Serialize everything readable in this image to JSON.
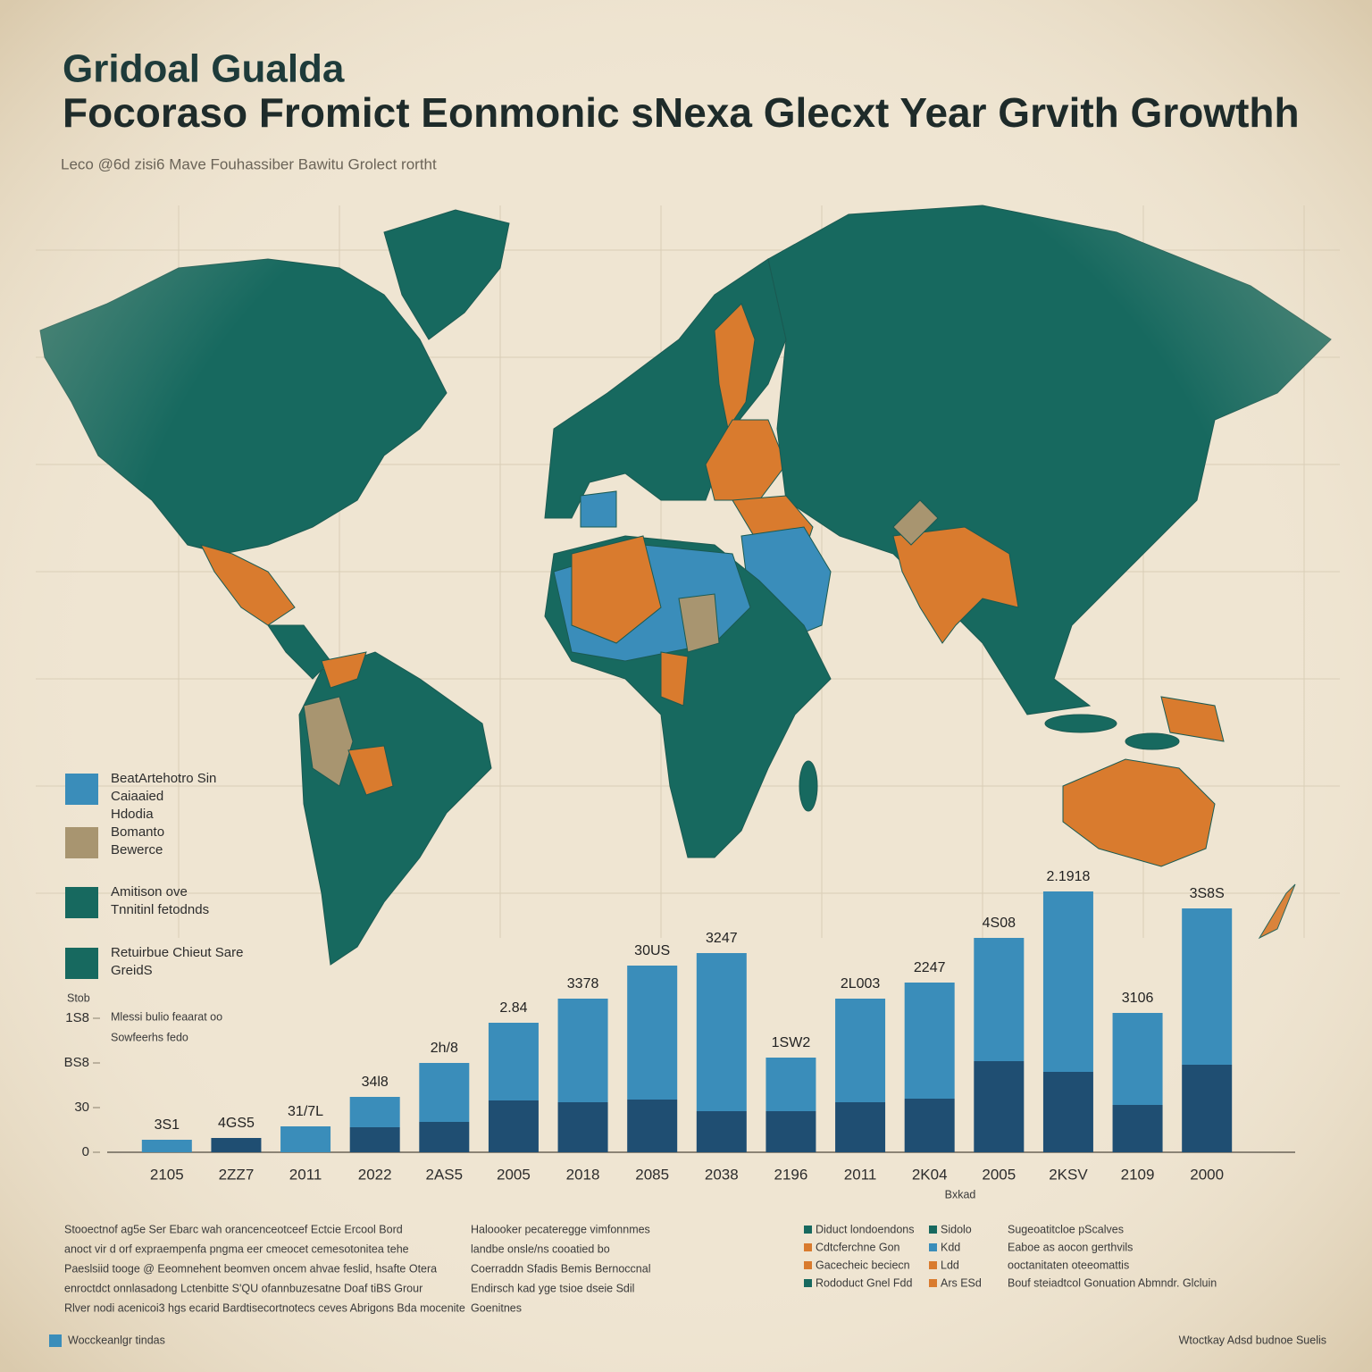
{
  "header": {
    "title_line1": "Gridoal Gualda",
    "title_line2": "Focoraso Fromict Eonmonic sNexa Glecxt Year Grvith Growthh",
    "subtitle": "Leco @6d zisi6 Mave Fouhassiber Bawitu Grolect rortht"
  },
  "legend": {
    "items": [
      {
        "color": "#3a8dba",
        "lines": [
          "BeatArtehotro Sin",
          "Caiaaied",
          "Hdodia"
        ]
      },
      {
        "color": "#a89570",
        "lines": [
          "Bomanto",
          "Bewerce"
        ]
      },
      {
        "color": "#17695f",
        "lines": [
          "Amitison ove",
          "Tnnitinl fetodnds"
        ]
      },
      {
        "color": "#17695f",
        "lines": [
          "Retuirbue Chieut Sare",
          "GreidS"
        ]
      }
    ],
    "axis_note": [
      "Stob",
      "Mlessi bulio feaarat oo",
      "Sowfeerhs fedo"
    ]
  },
  "chart_data": {
    "type": "stacked-bar",
    "x_label": "Bxkad",
    "categories": [
      "2105",
      "2ZZ7",
      "2011",
      "2022",
      "2AS5",
      "2005",
      "2018",
      "2085",
      "2038",
      "2196",
      "2011",
      "2K04",
      "2005",
      "2KSV",
      "2109",
      "2000"
    ],
    "series": [
      {
        "color": "#1f4e72",
        "values": [
          null,
          9.6,
          null,
          16.8,
          20.4,
          34.8,
          33.6,
          35.4,
          27.6,
          27.6,
          33.6,
          36,
          61.2,
          54,
          31.8,
          58.8
        ]
      },
      {
        "color": "#3a8dba",
        "values": [
          8.4,
          null,
          17.4,
          20.4,
          39.6,
          52.2,
          69.6,
          90,
          106.2,
          36,
          69.6,
          78,
          82.8,
          121.2,
          61.8,
          105
        ]
      }
    ],
    "annotations": [
      "3S1",
      "4GS5",
      "31/7L",
      "34l8",
      "2h/8",
      "2.84",
      "3378",
      "30US",
      "3247",
      "1SW2",
      "2L003",
      "2247",
      "4S08",
      "2.1918",
      "3106",
      "3S8S"
    ],
    "ylim": [
      0,
      180
    ],
    "yticks": [
      0,
      30,
      {
        "value": 60,
        "label": "BS8"
      },
      {
        "value": 90,
        "label": "1S8"
      }
    ]
  },
  "notes": {
    "col1": [
      "Stooectnof ag5e Ser Ebarc wah orancenceotceef Ectcie Ercool Bord",
      "anoct vir d orf expraempenfa pngma eer cmeocet cemesotonitea tehe",
      "Paeslsiid tooge @ Eeomnehent beomven oncem ahvae feslid, hsafte Otera",
      "enroctdct onnlasadong Lctenbitte S'QU ofannbuzesatne Doaf tiBS Grour",
      "Rlver nodi acenicoi3 hgs ecarid Bardtisecortnotecs ceves Abrigons Bda mocenite"
    ],
    "col2": [
      "Haloooker pecateregge vimfonnmes",
      "landbe onsle/ns cooatied bo",
      "Coerraddn Sfadis Bemis Bernoccnal",
      "Endirsch kad yge tsioe dseie Sdil",
      "Goenitnes"
    ],
    "key1": [
      {
        "color": "#17695f",
        "text": "Diduct londoendons"
      },
      {
        "color": "#d97b2e",
        "text": "Cdtcferchne Gon"
      },
      {
        "color": "#d97b2e",
        "text": "Gacecheic beciecn"
      },
      {
        "color": "#17695f",
        "text": "Rododuct Gnel Fdd"
      }
    ],
    "key2": [
      {
        "color": "#17695f",
        "text": "Sidolo"
      },
      {
        "color": "#3a8dba",
        "text": "Kdd"
      },
      {
        "color": "#d97b2e",
        "text": "Ldd"
      },
      {
        "color": "#d97b2e",
        "text": "Ars ESd"
      }
    ],
    "col3": [
      "Sugeoatitcloe pScalves",
      "Eaboe as aocon gerthvils",
      "ooctanitaten oteeomattis",
      "Bouf steiadtcol Gonuation Abmndr. Glcluin"
    ]
  },
  "footer": {
    "left": "Wocckeanlgr tindas",
    "right": "Wtoctkay Adsd budnoe Suelis"
  }
}
